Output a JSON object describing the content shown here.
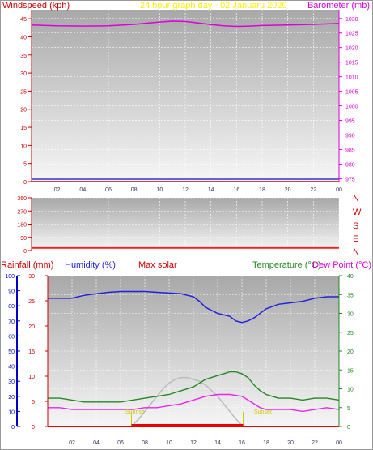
{
  "colors": {
    "wind": "#cc0000",
    "baro": "#dd00dd",
    "title": "#ffee00",
    "humidity": "#2222dd",
    "solar": "#bbbbbb",
    "temp": "#228822",
    "dew": "#ee22ee",
    "rain": "#ee0000",
    "sun": "#cccc00",
    "axis_rain": "#0000cc",
    "axis_hum": "#cc0000",
    "axis_temp": "#228822"
  },
  "chart_data": [
    {
      "type": "line",
      "title": "24 hour graph day - 02 Januaru 2020",
      "x_ticks": [
        "02",
        "04",
        "06",
        "08",
        "10",
        "12",
        "14",
        "16",
        "18",
        "20",
        "22",
        "00"
      ],
      "left_label": "Windspeed (kph)",
      "right_label": "Barometer (mb)",
      "left_ticks": [
        "0",
        "5",
        "10",
        "15",
        "20",
        "25",
        "30",
        "35",
        "40",
        "45"
      ],
      "right_ticks": [
        "975",
        "980",
        "985",
        "990",
        "995",
        "1000",
        "1005",
        "1010",
        "1015",
        "1020",
        "1025",
        "1030"
      ],
      "left_ylim": [
        0,
        47.5
      ],
      "right_ylim": [
        974,
        1033
      ],
      "wind_speed": {
        "x": [
          0,
          24
        ],
        "y": [
          0,
          0
        ]
      },
      "barometer": {
        "x": [
          0,
          2,
          4,
          6,
          8,
          9,
          10,
          11,
          12,
          13,
          14,
          15,
          16,
          17,
          18,
          20,
          22,
          24
        ],
        "y": [
          1027.8,
          1027.5,
          1027.4,
          1027.5,
          1028.0,
          1028.4,
          1028.8,
          1029.1,
          1029.0,
          1028.5,
          1027.9,
          1027.5,
          1027.3,
          1027.4,
          1027.6,
          1027.8,
          1028.0,
          1028.3
        ]
      }
    },
    {
      "type": "line",
      "left_ticks": [
        "0",
        "90",
        "180",
        "270",
        "360"
      ],
      "ylim": [
        0,
        360
      ],
      "direction_labels": [
        "N",
        "W",
        "S",
        "E",
        "N"
      ],
      "wind_direction": {
        "x": [
          0,
          24
        ],
        "y": [
          18,
          18
        ]
      }
    },
    {
      "type": "line",
      "x_ticks": [
        "02",
        "04",
        "06",
        "08",
        "10",
        "12",
        "14",
        "16",
        "18",
        "20",
        "22",
        "00"
      ],
      "legend": [
        "Rainfall (mm)",
        "Humidity (%)",
        "Max solar",
        "Temperature (°C)",
        "Dew Point (°C)"
      ],
      "humidity_ticks": [
        "0",
        "10",
        "20",
        "30",
        "40",
        "50",
        "60",
        "70",
        "80",
        "90",
        "100"
      ],
      "rain_ticks": [
        "0",
        "5",
        "10",
        "15",
        "20",
        "25",
        "30"
      ],
      "temp_ticks": [
        "0",
        "5",
        "10",
        "15",
        "20",
        "25",
        "30",
        "35",
        "40"
      ],
      "humidity_ylim": [
        0,
        100
      ],
      "rain_ylim": [
        0,
        30
      ],
      "temp_ylim": [
        0,
        40
      ],
      "sunrise_label": "Sunrise",
      "sunset_label": "Sunset",
      "sunrise_x": 6.9,
      "sunset_x": 16.1,
      "humidity": {
        "x": [
          0,
          2,
          3,
          4,
          5,
          6,
          7,
          8,
          9,
          10,
          11,
          12,
          12.5,
          13,
          13.5,
          14,
          15,
          15.5,
          16,
          16.5,
          17,
          17.5,
          18,
          19,
          20,
          21,
          22,
          23,
          24
        ],
        "y": [
          85,
          85,
          87,
          88,
          89,
          89.5,
          89.5,
          89.5,
          89,
          88.5,
          88,
          86,
          83,
          79,
          77,
          75,
          73,
          70,
          69,
          70,
          72,
          75,
          78,
          81,
          82,
          83,
          85,
          86,
          86
        ]
      },
      "temperature": {
        "x": [
          0,
          1,
          2,
          3,
          4,
          5,
          6,
          7,
          8,
          9,
          10,
          11,
          12,
          12.5,
          13,
          13.5,
          14,
          14.5,
          15,
          15.5,
          16,
          16.5,
          17,
          17.5,
          18,
          18.5,
          19,
          20,
          21,
          22,
          23,
          24
        ],
        "y": [
          7.5,
          7.5,
          7,
          6.5,
          6.5,
          6.5,
          6.5,
          7,
          7.5,
          8,
          8.5,
          9.5,
          10.5,
          11.5,
          12.5,
          13,
          13.5,
          14,
          14.5,
          14.5,
          14,
          13,
          11,
          9.5,
          8.5,
          8,
          7.5,
          7.5,
          7,
          7.5,
          7.5,
          7
        ]
      },
      "dew_point": {
        "x": [
          0,
          1,
          2,
          3,
          4,
          5,
          6,
          7,
          8,
          9,
          10,
          11,
          12,
          13,
          14,
          15,
          16,
          16.5,
          17,
          17.5,
          18,
          19,
          20,
          21,
          22,
          23,
          24
        ],
        "y": [
          5,
          5,
          4.5,
          4.5,
          4.5,
          4.5,
          4.5,
          4.5,
          5,
          5,
          5.5,
          6,
          7,
          8,
          8.5,
          8.5,
          8,
          7,
          6,
          5,
          4.5,
          4.5,
          4.5,
          4,
          4.5,
          5,
          4.5
        ]
      },
      "max_solar": {
        "x": [
          6.9,
          7.5,
          8,
          8.5,
          9,
          9.5,
          10,
          10.5,
          11,
          11.5,
          12,
          12.5,
          13,
          13.5,
          14,
          14.5,
          15,
          15.5,
          16.1
        ],
        "y": [
          0,
          2,
          4,
          6,
          8,
          10,
          11.5,
          12.5,
          13,
          13,
          12.5,
          12,
          11,
          9.5,
          8,
          6,
          4,
          2,
          0
        ]
      },
      "rainfall": {
        "x": [
          0,
          24
        ],
        "y": [
          0,
          0
        ]
      }
    }
  ]
}
